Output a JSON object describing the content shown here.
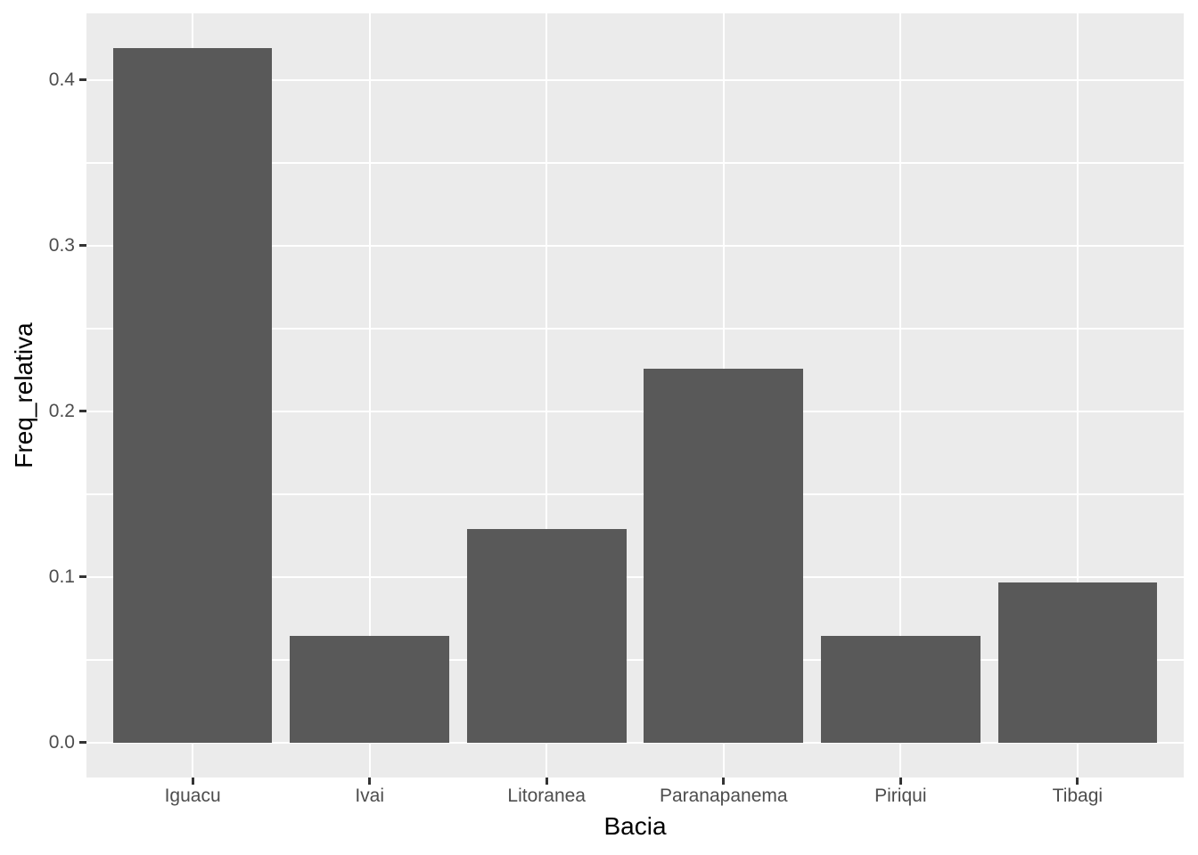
{
  "chart_data": {
    "type": "bar",
    "title": "",
    "xlabel": "Bacia",
    "ylabel": "Freq_relativa",
    "categories": [
      "Iguacu",
      "Ivai",
      "Litoranea",
      "Paranapanema",
      "Piriqui",
      "Tibagi"
    ],
    "values": [
      0.4194,
      0.0645,
      0.129,
      0.2258,
      0.0645,
      0.0968
    ],
    "y_ticks": [
      0,
      0.1,
      0.2,
      0.3,
      0.4
    ],
    "y_tick_labels": [
      "0.0",
      "0.1",
      "0.2",
      "0.3",
      "0.4"
    ],
    "y_minor_ticks": [
      0.05,
      0.15,
      0.25,
      0.35
    ],
    "ylim": [
      -0.021,
      0.4403
    ],
    "grid": "on",
    "legend_position": "none",
    "bar_color": "#595959",
    "panel_bg": "#EBEBEB",
    "grid_color": "#FFFFFF",
    "tick_color": "#333333",
    "tick_label_color": "#4D4D4D",
    "axis_title_color": "#000000"
  }
}
